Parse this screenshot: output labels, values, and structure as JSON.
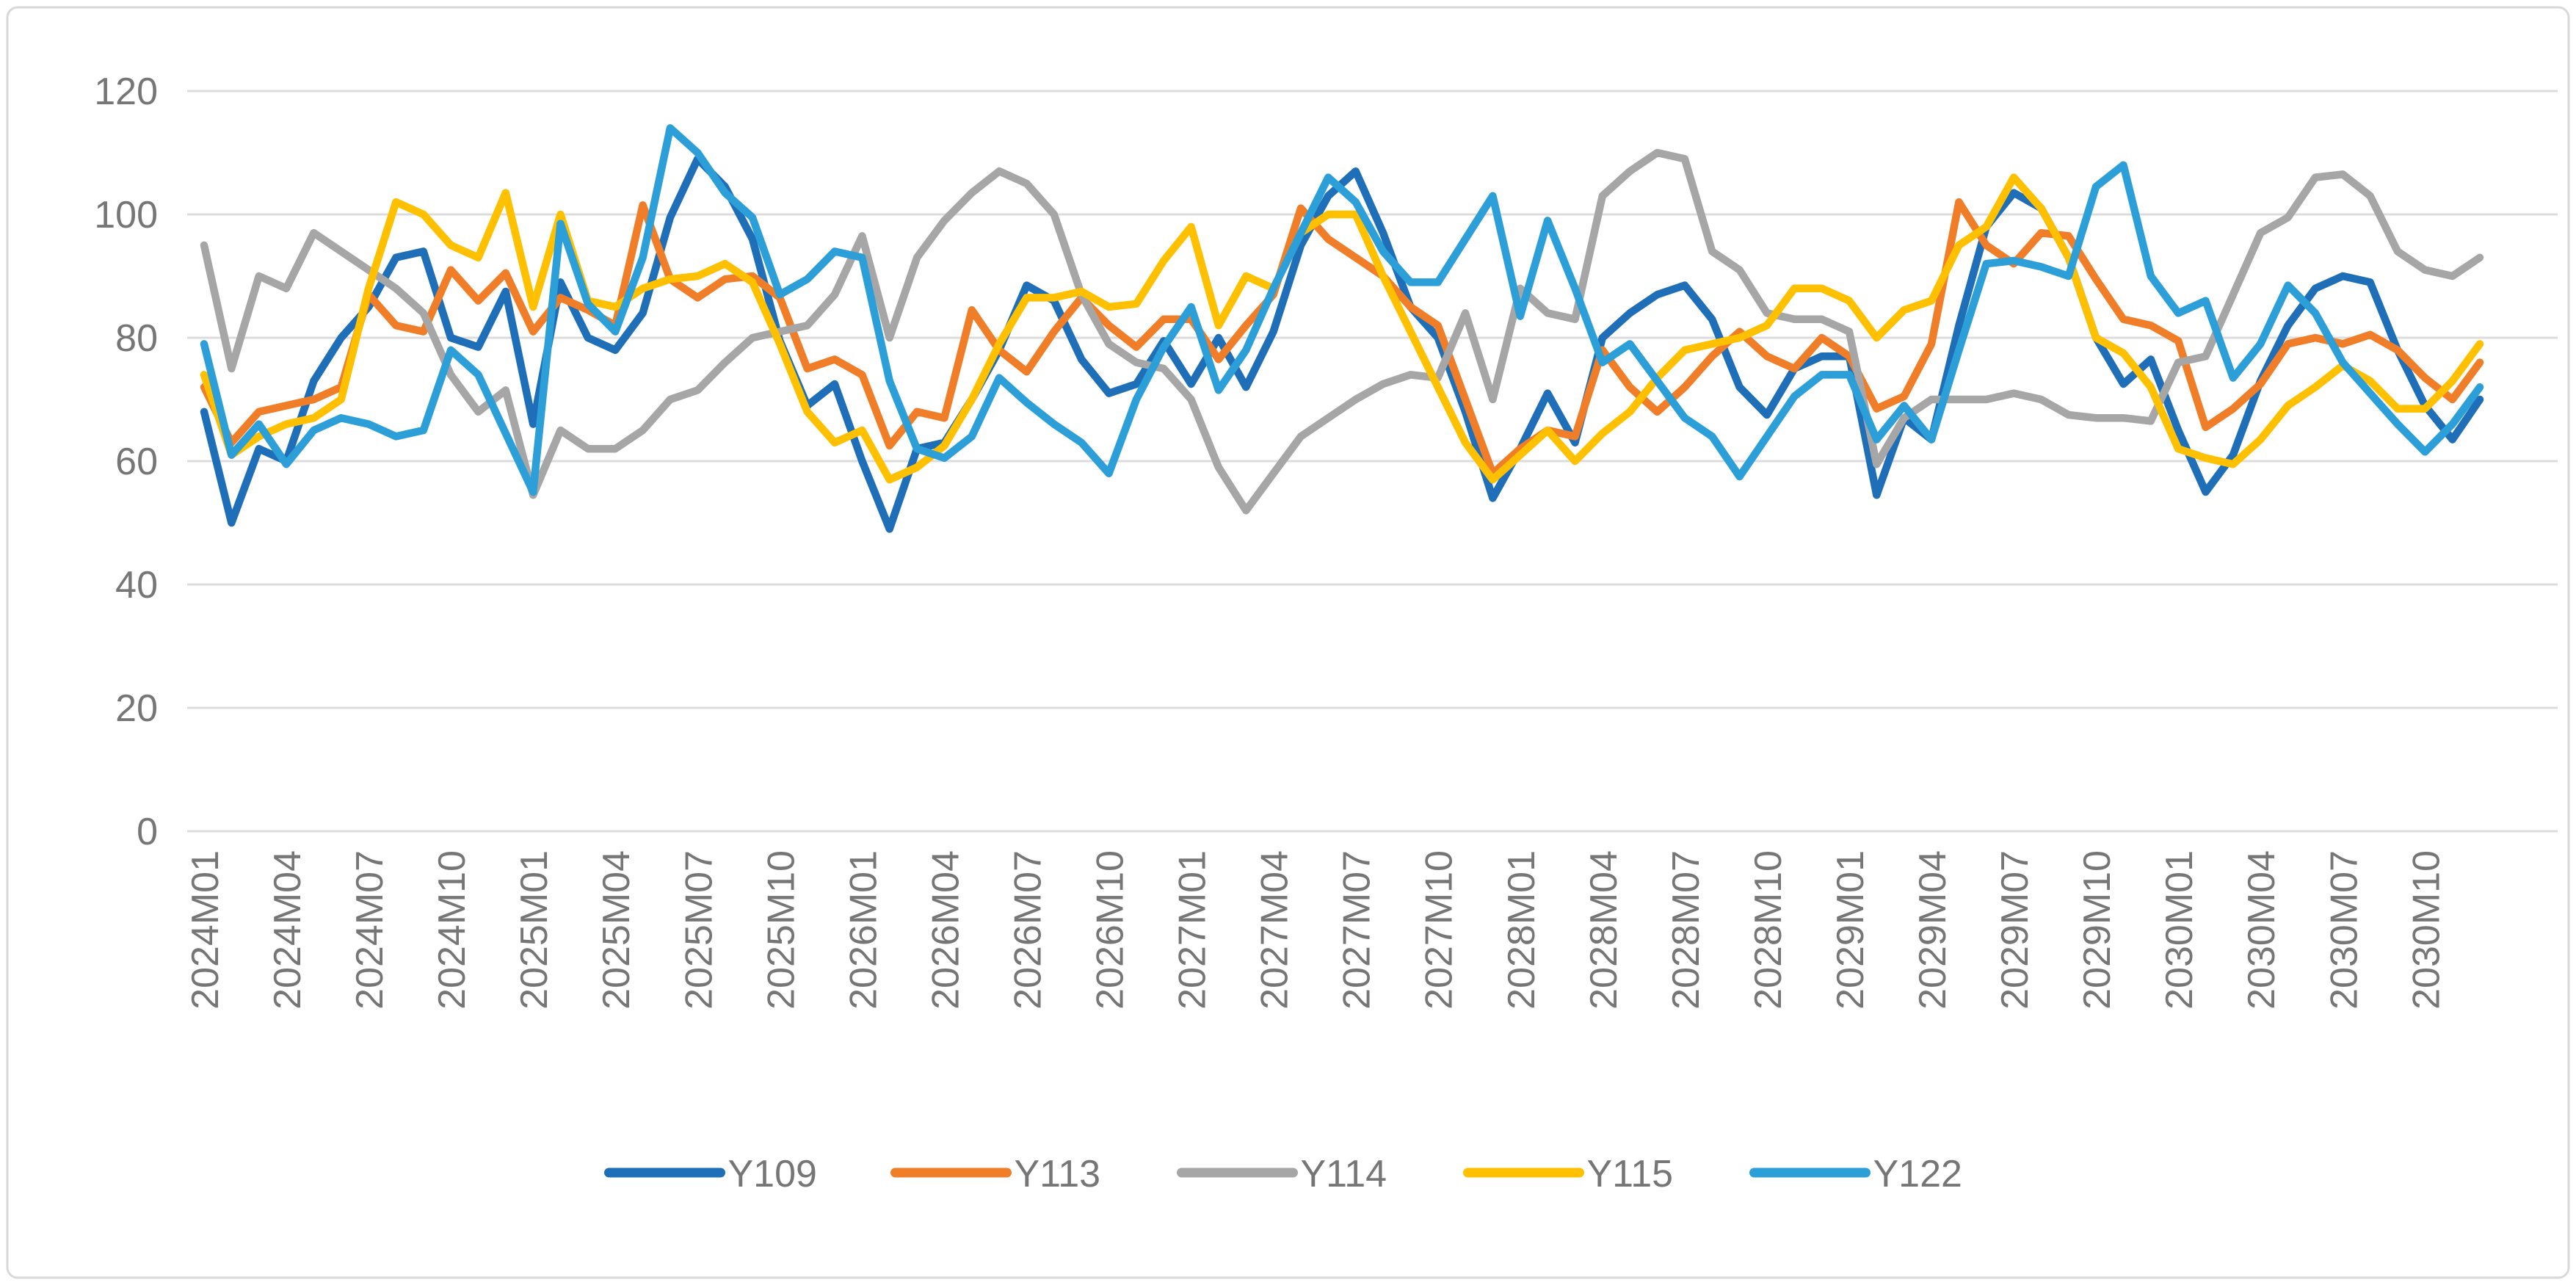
{
  "chart_data": {
    "type": "line",
    "title": "",
    "xlabel": "",
    "ylabel": "",
    "ylim": [
      0,
      120
    ],
    "y_ticks": [
      0,
      20,
      40,
      60,
      80,
      100,
      120
    ],
    "grid": true,
    "legend_position": "bottom",
    "x_tick_label_every": 3,
    "x_tick_rotation": 90,
    "categories": [
      "2024M01",
      "2024M02",
      "2024M03",
      "2024M04",
      "2024M05",
      "2024M06",
      "2024M07",
      "2024M08",
      "2024M09",
      "2024M10",
      "2024M11",
      "2024M12",
      "2025M01",
      "2025M02",
      "2025M03",
      "2025M04",
      "2025M05",
      "2025M06",
      "2025M07",
      "2025M08",
      "2025M09",
      "2025M10",
      "2025M11",
      "2025M12",
      "2026M01",
      "2026M02",
      "2026M03",
      "2026M04",
      "2026M05",
      "2026M06",
      "2026M07",
      "2026M08",
      "2026M09",
      "2026M10",
      "2026M11",
      "2026M12",
      "2027M01",
      "2027M02",
      "2027M03",
      "2027M04",
      "2027M05",
      "2027M06",
      "2027M07",
      "2027M08",
      "2027M09",
      "2027M10",
      "2027M11",
      "2027M12",
      "2028M01",
      "2028M02",
      "2028M03",
      "2028M04",
      "2028M05",
      "2028M06",
      "2028M07",
      "2028M08",
      "2028M09",
      "2028M10",
      "2028M11",
      "2028M12",
      "2029M01",
      "2029M02",
      "2029M03",
      "2029M04",
      "2029M05",
      "2029M06",
      "2029M07",
      "2029M08",
      "2029M09",
      "2029M10",
      "2029M11",
      "2029M12",
      "2030M01",
      "2030M02",
      "2030M03",
      "2030M04",
      "2030M05",
      "2030M06",
      "2030M07",
      "2030M08",
      "2030M09",
      "2030M10",
      "2030M11",
      "2030M12"
    ],
    "series": [
      {
        "name": "Y109",
        "color": "#1E6FB8",
        "values": [
          68,
          50,
          62,
          60,
          73,
          80,
          85,
          93,
          94,
          80,
          78.5,
          87.5,
          66,
          89,
          80,
          78,
          84,
          99.5,
          109,
          104.5,
          96,
          79.5,
          69,
          72.5,
          60,
          49,
          62,
          63,
          70,
          78,
          88.5,
          86,
          76.5,
          71,
          72.5,
          79.5,
          72.5,
          80,
          72,
          81,
          95,
          103,
          107,
          97,
          85,
          80,
          68,
          54,
          62,
          71,
          63,
          80,
          84,
          87,
          88.5,
          83,
          72,
          67.5,
          75,
          77,
          77,
          54.5,
          67,
          63.5,
          82,
          98,
          103.5,
          101,
          93,
          80,
          72.5,
          76.5,
          65,
          55,
          61,
          73,
          82,
          88,
          90,
          89,
          78,
          69,
          63.5,
          70
        ]
      },
      {
        "name": "Y113",
        "color": "#F07D28",
        "values": [
          72,
          63,
          68,
          69,
          70,
          72,
          87,
          82,
          81,
          91,
          86,
          90.5,
          81,
          86.5,
          84.5,
          82,
          101.5,
          89.5,
          86.5,
          89.5,
          90,
          86.5,
          75,
          76.5,
          74,
          62.5,
          68,
          67,
          84.5,
          78,
          74.5,
          81,
          86.5,
          82,
          78.5,
          83,
          83,
          76.5,
          82,
          87,
          101,
          96,
          93,
          90,
          85,
          82,
          70,
          58,
          62,
          65,
          64,
          78,
          72,
          68,
          72,
          77,
          81,
          77,
          75,
          80,
          77,
          68.5,
          70.5,
          79,
          102,
          95,
          92,
          97,
          96.5,
          89.5,
          83,
          82,
          79.5,
          65.5,
          68.5,
          72.5,
          79,
          80,
          79,
          80.5,
          78,
          73.5,
          70,
          76
        ]
      },
      {
        "name": "Y114",
        "color": "#A6A6A6",
        "values": [
          95,
          75,
          90,
          88,
          97,
          94,
          91,
          88,
          84,
          74,
          68,
          71.5,
          54.5,
          65,
          62,
          62,
          65,
          70,
          71.5,
          76,
          80,
          81,
          82,
          87,
          96.5,
          80,
          93,
          99,
          103.5,
          107,
          105,
          100,
          87,
          79,
          76,
          75,
          70,
          59,
          52,
          58,
          64,
          67,
          70,
          72.5,
          74,
          73.5,
          84,
          70,
          88,
          84,
          83,
          103,
          107,
          110,
          109,
          94,
          91,
          84,
          83,
          83,
          81,
          59.5,
          67,
          70,
          70,
          70,
          71,
          70,
          67.5,
          67,
          67,
          66.5,
          76,
          77,
          87,
          97,
          99.5,
          106,
          106.5,
          103,
          94,
          91,
          90,
          93
        ]
      },
      {
        "name": "Y115",
        "color": "#FFC000",
        "values": [
          74,
          61,
          64,
          66,
          67,
          70,
          88,
          102,
          100,
          95,
          93,
          103.5,
          85,
          100,
          86,
          85,
          88,
          89.5,
          90,
          92,
          89,
          79,
          68,
          63,
          65,
          57,
          59,
          62.5,
          70,
          79,
          86.5,
          86.5,
          87.5,
          85,
          85.5,
          92.5,
          98,
          82,
          90,
          88,
          97,
          100,
          100,
          90,
          81,
          72,
          63,
          57,
          61,
          65,
          60,
          64.5,
          68,
          73.5,
          78,
          79,
          80,
          82,
          88,
          88,
          86,
          80,
          84.5,
          86,
          95,
          98,
          106,
          101,
          93,
          80,
          77.5,
          72,
          62,
          60.5,
          59.5,
          63.5,
          69,
          72,
          75.5,
          73,
          68.5,
          68.5,
          73,
          79
        ]
      },
      {
        "name": "Y122",
        "color": "#2C9FD9",
        "values": [
          79,
          61,
          66,
          59.5,
          65,
          67,
          66,
          64,
          65,
          78,
          74,
          64.5,
          55,
          98.5,
          85.5,
          81,
          93,
          114,
          110,
          103.5,
          99.5,
          87,
          89.5,
          94,
          93,
          73,
          62,
          60.5,
          64,
          73.5,
          69.5,
          66,
          63,
          58,
          70,
          78.5,
          85,
          71.5,
          78,
          88,
          97,
          106,
          102,
          94,
          89,
          89,
          96,
          103,
          83.5,
          99,
          88,
          76,
          79,
          73,
          67,
          64,
          57.5,
          64,
          70.5,
          74,
          74,
          63.5,
          69,
          63.5,
          78,
          92,
          92.5,
          91.5,
          90,
          104.5,
          108,
          90,
          84,
          86,
          73.5,
          79,
          88.5,
          84,
          76,
          71,
          66,
          61.5,
          66,
          72
        ]
      }
    ],
    "style": {
      "background": "#ffffff",
      "border_color": "#D9D9D9",
      "gridline_color": "#DCDCDC",
      "tick_label_color": "#767676",
      "legend_label_color": "#767676",
      "line_width": 10.5,
      "tick_font_size": 52,
      "legend_font_size": 52
    }
  }
}
